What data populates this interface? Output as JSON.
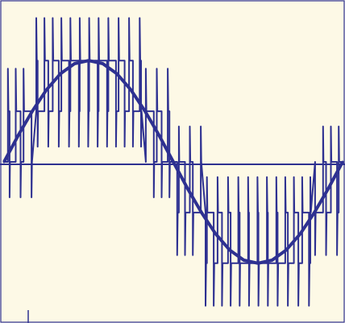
{
  "colors": {
    "background": "#fdf9e6",
    "trace": "#2e3191"
  },
  "chart_data": {
    "type": "line",
    "title": "",
    "xlabel": "",
    "ylabel": "",
    "grid": false,
    "legend": "none",
    "xlim": [
      0,
      1.2
    ],
    "ylim": [
      -1.55,
      1.55
    ],
    "series": [
      {
        "kind": "fundamental",
        "x": [
          0,
          0.05,
          0.1,
          0.15,
          0.2,
          0.25,
          0.3,
          0.35,
          0.4,
          0.45,
          0.5,
          0.55,
          0.6,
          0.65,
          0.7,
          0.75,
          0.8,
          0.85,
          0.9,
          0.95,
          1.0,
          1.05,
          1.1,
          1.15,
          1.2
        ],
        "y": [
          0,
          0.26,
          0.5,
          0.71,
          0.87,
          0.97,
          1.0,
          0.97,
          0.87,
          0.71,
          0.5,
          0.26,
          0,
          -0.26,
          -0.5,
          -0.71,
          -0.87,
          -0.97,
          -1.0,
          -0.97,
          -0.87,
          -0.71,
          -0.5,
          -0.26,
          0
        ]
      },
      {
        "kind": "pwm-multilevel",
        "levels": [
          -1,
          -0.5,
          0,
          0.5,
          1
        ],
        "period": 1.2,
        "pulses_per_period": 36
      }
    ]
  }
}
